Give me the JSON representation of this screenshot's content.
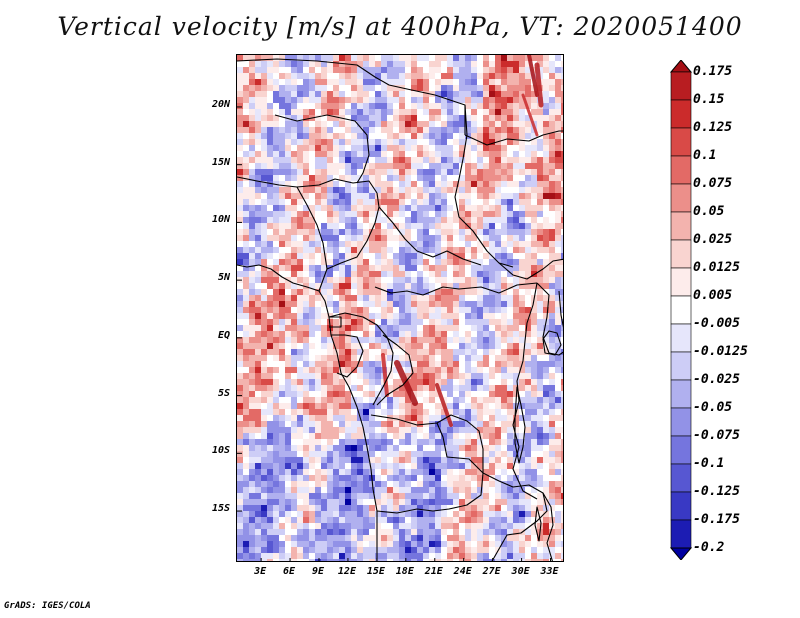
{
  "title": "Vertical velocity [m/s] at 400hPa, VT: 2020051400",
  "footer": "GrADS: IGES/COLA",
  "map": {
    "lat_labels": [
      "20N",
      "15N",
      "10N",
      "5N",
      "EQ",
      "5S",
      "10S",
      "15S"
    ],
    "lon_labels": [
      "3E",
      "6E",
      "9E",
      "12E",
      "15E",
      "18E",
      "21E",
      "24E",
      "27E",
      "30E",
      "33E"
    ],
    "lat_values": [
      20,
      15,
      10,
      5,
      0,
      -5,
      -10,
      -15
    ],
    "lon_values": [
      3,
      6,
      9,
      12,
      15,
      18,
      21,
      24,
      27,
      30,
      33
    ],
    "lon_range": [
      0.5,
      34.5
    ],
    "lat_range": [
      -19.5,
      24.5
    ],
    "field": "vertical velocity",
    "units": "m/s",
    "level": "400hPa",
    "valid_time": "2020051400"
  },
  "colorbar": {
    "labels": [
      "0.175",
      "0.15",
      "0.125",
      "0.1",
      "0.075",
      "0.05",
      "0.025",
      "0.0125",
      "0.005",
      "-0.005",
      "-0.0125",
      "-0.025",
      "-0.05",
      "-0.075",
      "-0.1",
      "-0.125",
      "-0.175",
      "-0.2"
    ],
    "colors": [
      "#a50f15",
      "#b81d21",
      "#cb2b2b",
      "#d94a47",
      "#e36a66",
      "#ec8f8a",
      "#f3b3ae",
      "#f9d4d0",
      "#fdeceb",
      "#ffffff",
      "#e6e6fb",
      "#cdcdf6",
      "#b0b0ef",
      "#9292e7",
      "#7575de",
      "#5757d2",
      "#3939c4",
      "#1c1cb3",
      "#0000a0"
    ]
  }
}
